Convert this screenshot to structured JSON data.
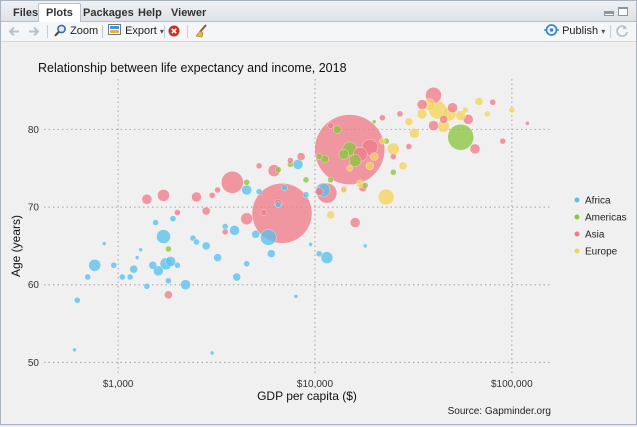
{
  "tabs": [
    {
      "label": "Files",
      "active": false
    },
    {
      "label": "Plots",
      "active": true
    },
    {
      "label": "Packages",
      "active": false
    },
    {
      "label": "Help",
      "active": false
    },
    {
      "label": "Viewer",
      "active": false
    }
  ],
  "toolbar": {
    "zoom_label": "Zoom",
    "export_label": "Export",
    "publish_label": "Publish",
    "icons": [
      "back-arrow-icon",
      "forward-arrow-icon",
      "zoom-icon",
      "export-icon",
      "remove-plot-icon",
      "broom-icon",
      "publish-icon",
      "refresh-icon"
    ]
  },
  "colors": {
    "Africa": "#5bc0eb",
    "Americas": "#8cc63f",
    "Asia": "#f07c8a",
    "Europe": "#f2d45c"
  },
  "chart_data": {
    "type": "scatter",
    "title": "Relationship between life expectancy and income, 2018",
    "xlabel": "GDP per capita ($)",
    "ylabel": "Age (years)",
    "caption": "Source: Gapminder.org",
    "x_scale": "log10",
    "xlim": [
      420,
      160000
    ],
    "ylim": [
      48.5,
      86.5
    ],
    "x_ticks": [
      1000,
      10000,
      100000
    ],
    "x_tick_labels": [
      "$1,000",
      "$10,000",
      "$100,000"
    ],
    "y_ticks": [
      50,
      60,
      70,
      80
    ],
    "y_tick_labels": [
      "50",
      "60",
      "70",
      "80"
    ],
    "grid": "dotted",
    "legend": {
      "placement": "right",
      "entries": [
        "Africa",
        "Americas",
        "Asia",
        "Europe"
      ]
    },
    "series": [
      {
        "name": "Africa",
        "points": [
          [
            600,
            51.6,
            2
          ],
          [
            620,
            58,
            3
          ],
          [
            700,
            61,
            3
          ],
          [
            760,
            62.5,
            6
          ],
          [
            850,
            65.3,
            2
          ],
          [
            950,
            62.5,
            3
          ],
          [
            1050,
            61,
            3
          ],
          [
            1150,
            61,
            3
          ],
          [
            1200,
            62,
            4
          ],
          [
            1250,
            63.5,
            2
          ],
          [
            1300,
            64.5,
            2
          ],
          [
            1400,
            59.8,
            3
          ],
          [
            1500,
            62.5,
            4
          ],
          [
            1550,
            68,
            3
          ],
          [
            1600,
            61.8,
            5
          ],
          [
            1700,
            66.2,
            7
          ],
          [
            1750,
            62.7,
            6
          ],
          [
            1800,
            60.5,
            3
          ],
          [
            1850,
            63,
            5
          ],
          [
            1900,
            68.5,
            3
          ],
          [
            2000,
            62.5,
            3
          ],
          [
            2200,
            60,
            5
          ],
          [
            2400,
            66,
            3
          ],
          [
            2500,
            65.5,
            3
          ],
          [
            2800,
            65,
            4
          ],
          [
            3000,
            51.2,
            2
          ],
          [
            3200,
            63.5,
            4
          ],
          [
            3500,
            67.5,
            3
          ],
          [
            3900,
            67,
            5
          ],
          [
            4000,
            61,
            4
          ],
          [
            4500,
            62.7,
            3
          ],
          [
            4500,
            72.2,
            5
          ],
          [
            5000,
            66.5,
            4
          ],
          [
            5200,
            72,
            3
          ],
          [
            5800,
            66.1,
            8
          ],
          [
            6000,
            64,
            4
          ],
          [
            6500,
            70.3,
            3
          ],
          [
            7000,
            72.5,
            3
          ],
          [
            8000,
            58.5,
            2
          ],
          [
            8200,
            75.5,
            5
          ],
          [
            9000,
            71.6,
            3
          ],
          [
            9500,
            65.2,
            2
          ],
          [
            10500,
            64,
            3
          ],
          [
            11000,
            72.2,
            7
          ],
          [
            11500,
            63.5,
            6
          ],
          [
            18000,
            65,
            2
          ]
        ]
      },
      {
        "name": "Americas",
        "points": [
          [
            1800,
            64.6,
            3
          ],
          [
            4500,
            73.2,
            3
          ],
          [
            6500,
            74.8,
            3
          ],
          [
            7500,
            75.5,
            3
          ],
          [
            9000,
            73.5,
            3
          ],
          [
            10500,
            76.5,
            3
          ],
          [
            11200,
            76.2,
            4
          ],
          [
            12000,
            73.5,
            3
          ],
          [
            13000,
            80,
            4
          ],
          [
            14000,
            76.8,
            5
          ],
          [
            15000,
            77.5,
            7
          ],
          [
            16000,
            76,
            6
          ],
          [
            18000,
            72.8,
            3
          ],
          [
            20000,
            81,
            2
          ],
          [
            23000,
            78.5,
            3
          ],
          [
            25000,
            74.5,
            3
          ],
          [
            55000,
            79,
            13
          ]
        ]
      },
      {
        "name": "Asia",
        "points": [
          [
            1400,
            71,
            5
          ],
          [
            1700,
            71.5,
            6
          ],
          [
            1800,
            58.7,
            4
          ],
          [
            2000,
            69.3,
            3
          ],
          [
            2500,
            71.3,
            5
          ],
          [
            2800,
            69.5,
            4
          ],
          [
            3000,
            71.5,
            3
          ],
          [
            3200,
            72.2,
            3
          ],
          [
            3500,
            66.8,
            3
          ],
          [
            3800,
            73.2,
            11
          ],
          [
            4500,
            68.5,
            6
          ],
          [
            5200,
            75.3,
            3
          ],
          [
            5500,
            69.3,
            3
          ],
          [
            6200,
            74.7,
            6
          ],
          [
            6500,
            70.5,
            4
          ],
          [
            6800,
            69.2,
            30
          ],
          [
            7500,
            76,
            3
          ],
          [
            8500,
            76.5,
            4
          ],
          [
            10500,
            72,
            4
          ],
          [
            11500,
            71.8,
            10
          ],
          [
            12000,
            80.5,
            3
          ],
          [
            14000,
            72.3,
            3
          ],
          [
            15000,
            77.4,
            35
          ],
          [
            16000,
            68,
            5
          ],
          [
            17000,
            76.8,
            7
          ],
          [
            17500,
            72.5,
            4
          ],
          [
            19000,
            77.7,
            8
          ],
          [
            22000,
            81.5,
            3
          ],
          [
            25000,
            76.5,
            3
          ],
          [
            27000,
            82,
            3
          ],
          [
            30000,
            77.8,
            3
          ],
          [
            35000,
            83.2,
            5
          ],
          [
            40000,
            80.5,
            5
          ],
          [
            40000,
            84.4,
            8
          ],
          [
            45000,
            81.3,
            4
          ],
          [
            50000,
            82.8,
            5
          ],
          [
            60000,
            81.3,
            5
          ],
          [
            65000,
            77.5,
            5
          ],
          [
            80000,
            83.5,
            3
          ],
          [
            90000,
            78.5,
            3
          ],
          [
            120000,
            80.8,
            2
          ]
        ]
      },
      {
        "name": "Europe",
        "points": [
          [
            12000,
            69,
            4
          ],
          [
            14000,
            72.2,
            3
          ],
          [
            15000,
            75,
            3
          ],
          [
            17000,
            73,
            4
          ],
          [
            19000,
            75.3,
            4
          ],
          [
            20000,
            76.5,
            4
          ],
          [
            22000,
            78.5,
            3
          ],
          [
            23000,
            71.3,
            8
          ],
          [
            25000,
            77.5,
            6
          ],
          [
            28000,
            75.3,
            4
          ],
          [
            30000,
            81,
            4
          ],
          [
            32000,
            79.5,
            5
          ],
          [
            35000,
            82,
            5
          ],
          [
            38000,
            83.2,
            6
          ],
          [
            42000,
            82.5,
            9
          ],
          [
            45000,
            80.4,
            6
          ],
          [
            48000,
            82,
            7
          ],
          [
            55000,
            81.8,
            5
          ],
          [
            58000,
            82.5,
            3
          ],
          [
            68000,
            83.6,
            4
          ],
          [
            75000,
            82,
            3
          ],
          [
            100000,
            82.5,
            3
          ]
        ]
      }
    ]
  }
}
